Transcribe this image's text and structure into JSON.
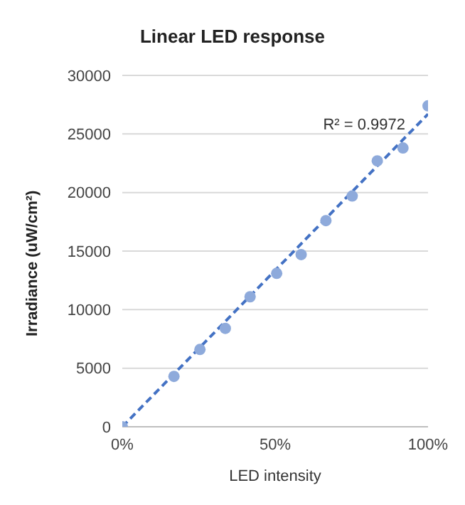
{
  "chart_data": {
    "type": "scatter",
    "title": "Linear LED response",
    "xlabel": "LED intensity",
    "ylabel": "Irradiance  (uW/cm²)",
    "x": [
      0,
      0.169,
      0.254,
      0.337,
      0.418,
      0.505,
      0.585,
      0.666,
      0.752,
      0.834,
      0.918,
      1.0
    ],
    "series": [
      {
        "color": "#8eaadb",
        "values": [
          0,
          4300,
          6600,
          8400,
          11100,
          13100,
          14700,
          17600,
          19700,
          22700,
          23800,
          27400
        ]
      },
      {
        "type": "line",
        "color": "#4472c4",
        "line_style": "dashed",
        "marker": "none",
        "x": [
          0,
          1.0
        ],
        "values": [
          0,
          26700
        ]
      }
    ],
    "xlim": [
      0,
      1
    ],
    "xticks": [
      {
        "value": 0,
        "label": "0%"
      },
      {
        "value": 0.5,
        "label": "50%"
      },
      {
        "value": 1,
        "label": "100%"
      }
    ],
    "ylim": [
      0,
      30000
    ],
    "yticks": [
      0,
      5000,
      10000,
      15000,
      20000,
      25000,
      30000
    ],
    "grid": "y",
    "marker": "circle",
    "annotations": [
      "R² = 0.9972"
    ]
  }
}
